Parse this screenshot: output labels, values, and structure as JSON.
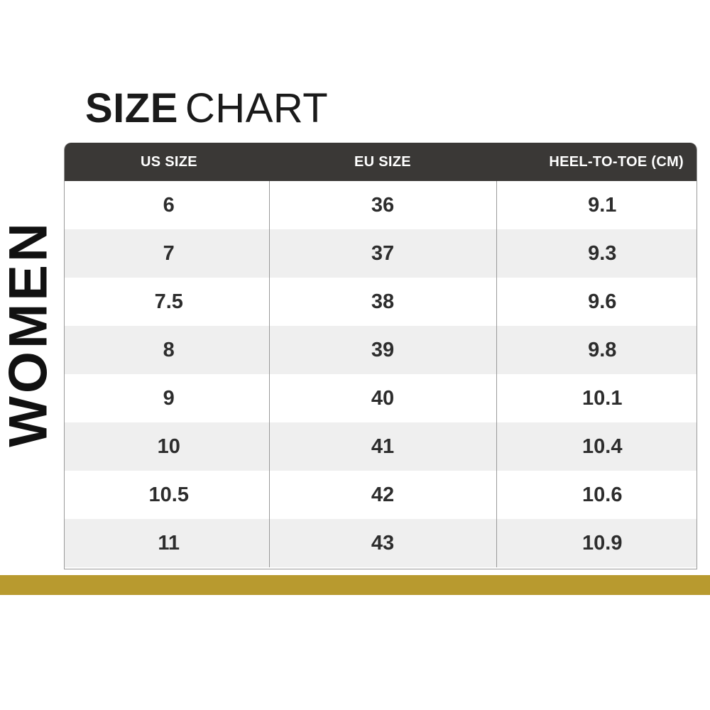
{
  "title": {
    "bold": "SIZE",
    "light": "CHART"
  },
  "side_label": "WOMEN",
  "table": {
    "headers": [
      "US SIZE",
      "EU SIZE",
      "HEEL-TO-TOE (CM)"
    ],
    "rows": [
      [
        "6",
        "36",
        "9.1"
      ],
      [
        "7",
        "37",
        "9.3"
      ],
      [
        "7.5",
        "38",
        "9.6"
      ],
      [
        "8",
        "39",
        "9.8"
      ],
      [
        "9",
        "40",
        "10.1"
      ],
      [
        "10",
        "41",
        "10.4"
      ],
      [
        "10.5",
        "42",
        "10.6"
      ],
      [
        "11",
        "43",
        "10.9"
      ]
    ]
  },
  "colors": {
    "header_bg": "#3a3836",
    "stripe": "#efefef",
    "accent_bar": "#b89a2f"
  }
}
